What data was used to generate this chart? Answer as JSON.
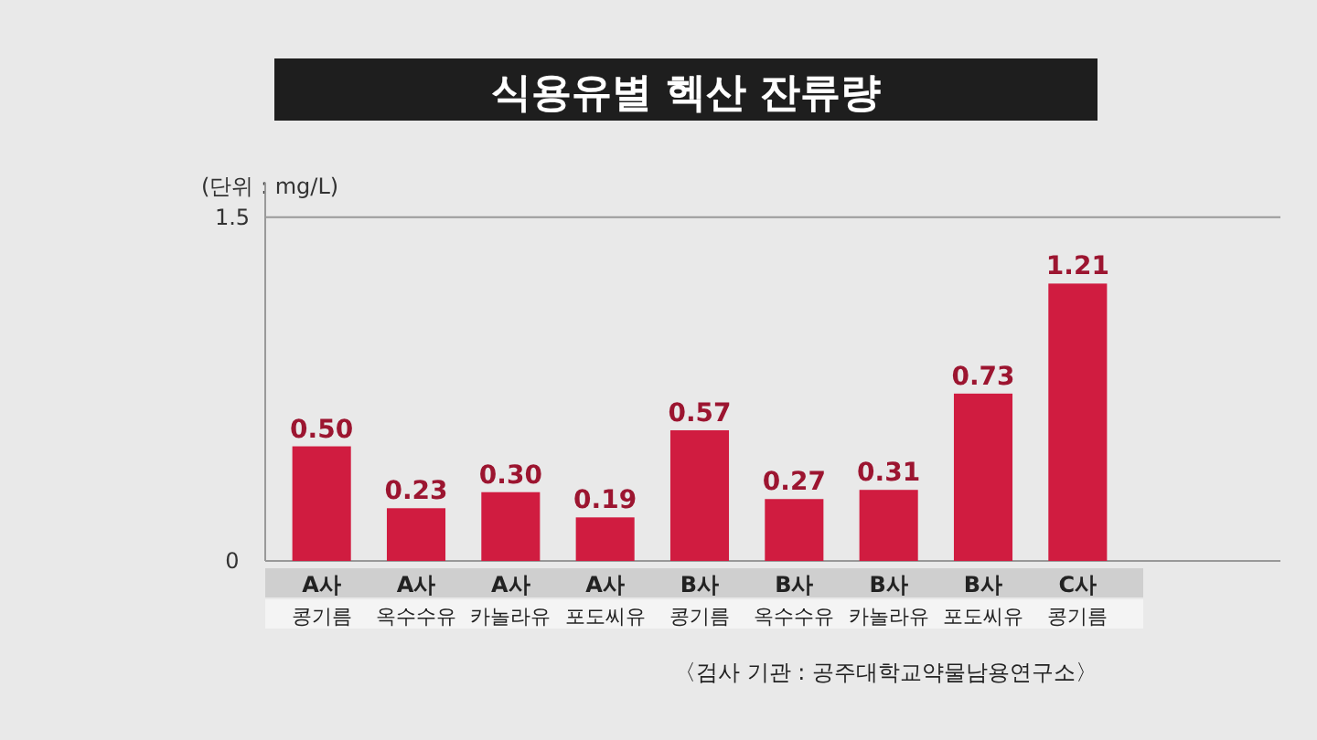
{
  "chart_data": {
    "type": "bar",
    "title": "식용유별 헥산 잔류량",
    "ylabel": "(단위 : mg/L)",
    "categories": [
      "A사\n콩기름",
      "A사\n옥수수유",
      "A사\n카놀라유",
      "A사\n포도씨유",
      "B사\n콩기름",
      "B사\n옥수수유",
      "B사\n카놀라유",
      "B사\n포도씨유",
      "C사\n콩기름"
    ],
    "values": [
      0.5,
      0.23,
      0.3,
      0.19,
      0.57,
      0.27,
      0.31,
      0.73,
      1.21
    ],
    "value_labels": [
      "0.50",
      "0.23",
      "0.30",
      "0.19",
      "0.57",
      "0.27",
      "0.31",
      "0.73",
      "1.21"
    ],
    "color": "#d01c40",
    "ylim": [
      0,
      1.65
    ],
    "yticks": [
      0,
      1.5
    ],
    "grid": "y",
    "annotations": [
      "〈검사 기관 : 공주대학교약물남용연구소〉"
    ]
  }
}
